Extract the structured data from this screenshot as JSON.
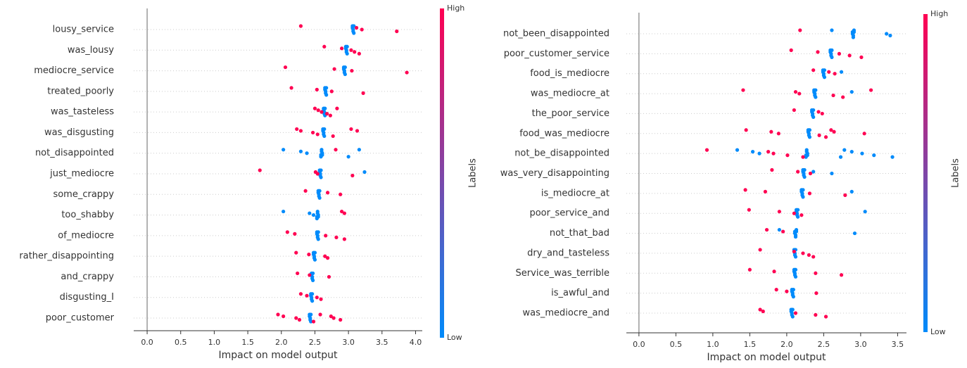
{
  "chart_data": [
    {
      "type": "beeswarm",
      "xlabel": "Impact on model output",
      "colorbar_label": "Labels",
      "colorbar_high": "High",
      "colorbar_low": "Low",
      "high_color": "#ff0052",
      "low_color": "#008bfb",
      "xlim": [
        -0.2,
        4.1
      ],
      "xticks": [
        {
          "value": 0,
          "label": "0.0"
        },
        0.5,
        {
          "value": 1,
          "label": "1.0"
        },
        1.5,
        {
          "value": 2,
          "label": "2.0"
        },
        2.5,
        {
          "value": 3,
          "label": "3.0"
        },
        3.5,
        {
          "value": 4,
          "label": "4.0"
        }
      ],
      "categories": [
        "lousy_service",
        "was_lousy",
        "mediocre_service",
        "treated_poorly",
        "was_tasteless",
        "was_disgusting",
        "not_disappointed",
        "just_mediocre",
        "some_crappy",
        "too_shabby",
        "of_mediocre",
        "rather_disappointing",
        "and_crappy",
        "disgusting_I",
        "poor_customer"
      ],
      "high_values": [
        [
          2.29,
          3.12,
          3.2,
          3.72
        ],
        [
          2.64,
          2.9,
          3.04,
          3.09,
          3.16
        ],
        [
          2.06,
          2.79,
          3.05,
          3.87
        ],
        [
          2.15,
          2.53,
          2.75,
          3.22
        ],
        [
          2.5,
          2.55,
          2.6,
          2.68,
          2.73,
          2.83
        ],
        [
          2.23,
          2.29,
          2.47,
          2.54,
          2.77,
          3.04,
          3.13
        ],
        [
          2.81
        ],
        [
          1.68,
          2.51,
          2.54,
          3.06
        ],
        [
          2.36,
          2.69,
          2.88
        ],
        [
          2.9,
          2.94
        ],
        [
          2.09,
          2.2,
          2.66,
          2.82,
          2.94
        ],
        [
          2.22,
          2.41,
          2.65,
          2.69
        ],
        [
          2.24,
          2.42,
          2.71
        ],
        [
          2.29,
          2.38,
          2.53,
          2.59
        ],
        [
          1.95,
          2.03,
          2.22,
          2.27,
          2.48,
          2.58,
          2.74,
          2.78,
          2.88
        ]
      ],
      "low_values": [
        [
          3.06,
          3.06,
          3.07,
          3.07,
          3.08,
          3.08
        ],
        [
          2.96,
          2.96,
          2.97,
          2.97,
          2.98,
          2.98
        ],
        [
          2.93,
          2.93,
          2.94,
          2.94,
          2.95,
          2.95
        ],
        [
          2.65,
          2.65,
          2.66,
          2.66,
          2.67,
          2.67
        ],
        [
          2.63,
          2.63,
          2.64,
          2.64,
          2.65,
          2.65
        ],
        [
          2.62,
          2.62,
          2.63,
          2.63,
          2.64,
          2.64
        ],
        [
          2.03,
          2.29,
          2.38,
          2.59,
          2.59,
          2.6,
          2.6,
          2.61,
          2.61,
          3.0,
          3.16
        ],
        [
          2.57,
          2.57,
          2.58,
          2.58,
          2.59,
          2.59,
          3.24
        ],
        [
          2.55,
          2.55,
          2.56,
          2.56,
          2.57,
          2.57
        ],
        [
          2.03,
          2.42,
          2.48,
          2.53,
          2.53,
          2.54,
          2.54,
          2.55,
          2.55
        ],
        [
          2.53,
          2.53,
          2.54,
          2.54,
          2.55,
          2.55
        ],
        [
          2.48,
          2.48,
          2.49,
          2.49,
          2.5,
          2.5
        ],
        [
          2.45,
          2.45,
          2.46,
          2.46,
          2.47,
          2.47
        ],
        [
          2.44,
          2.44,
          2.45,
          2.45,
          2.46,
          2.46
        ],
        [
          2.42,
          2.42,
          2.43,
          2.43,
          2.44,
          2.44
        ]
      ]
    },
    {
      "type": "beeswarm",
      "xlabel": "Impact on model output",
      "colorbar_label": "Labels",
      "colorbar_high": "High",
      "colorbar_low": "Low",
      "high_color": "#ff0052",
      "low_color": "#008bfb",
      "xlim": [
        -0.17,
        3.62
      ],
      "xticks": [
        {
          "value": 0,
          "label": "0.0"
        },
        0.5,
        {
          "value": 1,
          "label": "1.0"
        },
        1.5,
        {
          "value": 2,
          "label": "2.0"
        },
        2.5,
        {
          "value": 3,
          "label": "3.0"
        },
        3.5
      ],
      "categories": [
        "not_been_disappointed",
        "poor_customer_service",
        "food_is_mediocre",
        "was_mediocre_at",
        "the_poor_service",
        "food_was_mediocre",
        "not_be_disappointed",
        "was_very_disappointing",
        "is_mediocre_at",
        "poor_service_and",
        "not_that_bad",
        "dry_and_tasteless",
        "Service_was_terrible",
        "is_awful_and",
        "was_mediocre_and"
      ],
      "high_values": [
        [
          2.18
        ],
        [
          2.06,
          2.42,
          2.71,
          2.85,
          3.01
        ],
        [
          2.36,
          2.57,
          2.65
        ],
        [
          1.41,
          2.12,
          2.17,
          2.63,
          2.76,
          3.14
        ],
        [
          2.1,
          2.43,
          2.48
        ],
        [
          1.45,
          1.79,
          1.89,
          2.44,
          2.53,
          2.6,
          2.64,
          3.05
        ],
        [
          0.92,
          1.75,
          1.82,
          2.01,
          2.22
        ],
        [
          1.8,
          2.15,
          2.32
        ],
        [
          1.44,
          1.71,
          2.31,
          2.79
        ],
        [
          1.49,
          1.9,
          2.1,
          2.2
        ],
        [
          1.73,
          1.95
        ],
        [
          1.64,
          2.1,
          2.22,
          2.3,
          2.36
        ],
        [
          1.5,
          1.83,
          2.39,
          2.74
        ],
        [
          1.86,
          2.0,
          2.4
        ],
        [
          1.64,
          1.68,
          2.12,
          2.39,
          2.53
        ]
      ],
      "low_values": [
        [
          2.61,
          2.89,
          2.89,
          2.9,
          2.9,
          2.91,
          2.91,
          3.35,
          3.4
        ],
        [
          2.59,
          2.59,
          2.6,
          2.6,
          2.61,
          2.61
        ],
        [
          2.49,
          2.49,
          2.5,
          2.5,
          2.51,
          2.51,
          2.74
        ],
        [
          2.37,
          2.37,
          2.38,
          2.38,
          2.39,
          2.39,
          2.88
        ],
        [
          2.34,
          2.34,
          2.35,
          2.35,
          2.36,
          2.36
        ],
        [
          2.29,
          2.29,
          2.3,
          2.3,
          2.31,
          2.31
        ],
        [
          1.33,
          1.54,
          1.63,
          2.26,
          2.26,
          2.27,
          2.27,
          2.28,
          2.28,
          2.73,
          2.78,
          2.88,
          3.02,
          3.18,
          3.43
        ],
        [
          2.22,
          2.22,
          2.23,
          2.23,
          2.24,
          2.24,
          2.36,
          2.61
        ],
        [
          2.2,
          2.2,
          2.21,
          2.21,
          2.22,
          2.22,
          2.88
        ],
        [
          2.13,
          2.13,
          2.14,
          2.14,
          2.15,
          2.15,
          3.06
        ],
        [
          1.9,
          2.11,
          2.11,
          2.12,
          2.12,
          2.13,
          2.13,
          2.92
        ],
        [
          2.1,
          2.1,
          2.11,
          2.11,
          2.12,
          2.12
        ],
        [
          2.1,
          2.1,
          2.11,
          2.11,
          2.12,
          2.12
        ],
        [
          2.07,
          2.07,
          2.08,
          2.08,
          2.09,
          2.09
        ],
        [
          2.06,
          2.06,
          2.07,
          2.07,
          2.08,
          2.08
        ]
      ]
    }
  ]
}
